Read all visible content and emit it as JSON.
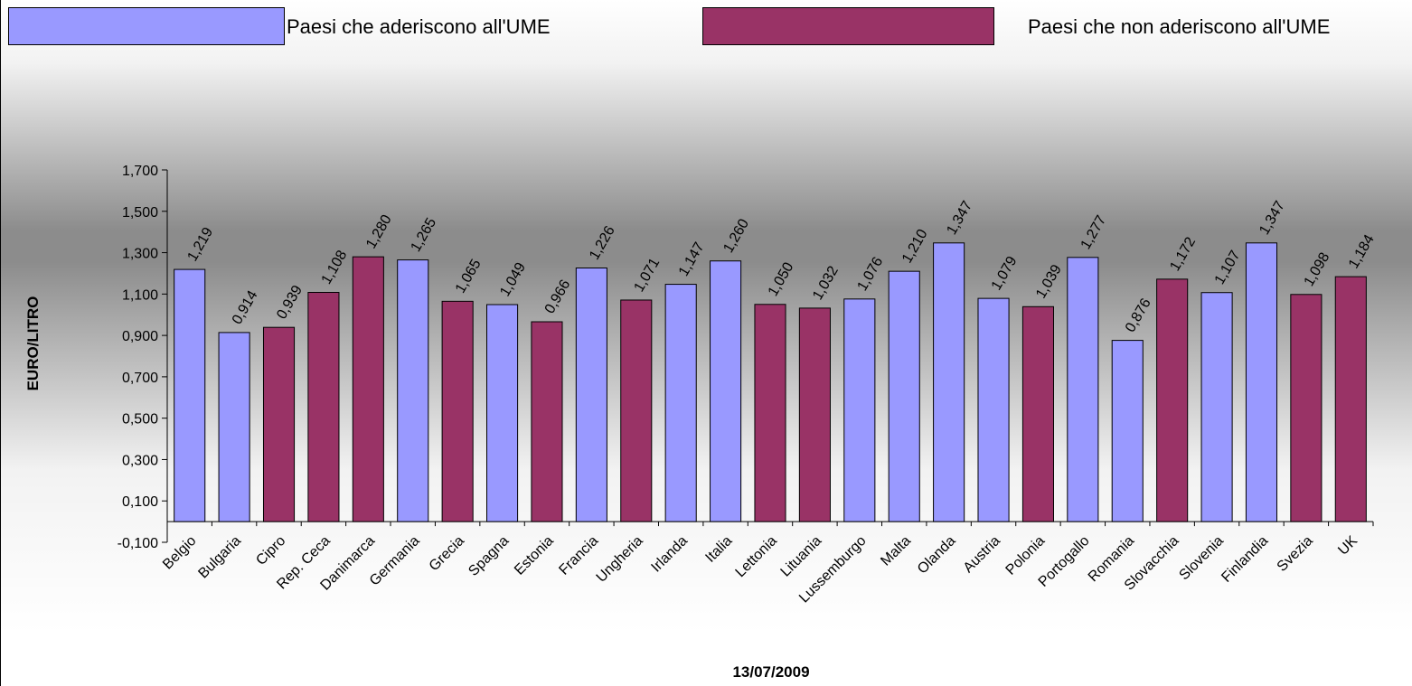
{
  "legend": [
    {
      "label": "Paesi che aderiscono all'UME",
      "color": "#9999ff"
    },
    {
      "label": "Paesi che non aderiscono all'UME",
      "color": "#993366"
    }
  ],
  "chart_data": {
    "type": "bar",
    "title": "",
    "xlabel": "13/07/2009",
    "ylabel": "EURO/LITRO",
    "ylim": [
      -0.1,
      1.7
    ],
    "yticks": [
      "-0,100",
      "0,100",
      "0,300",
      "0,500",
      "0,700",
      "0,900",
      "1,100",
      "1,300",
      "1,500",
      "1,700"
    ],
    "grid": false,
    "legend_position": "top",
    "categories": [
      "Belgio",
      "Bulgaria",
      "Cipro",
      "Rep. Ceca",
      "Danimarca",
      "Germania",
      "Grecia",
      "Spagna",
      "Estonia",
      "Francia",
      "Ungheria",
      "Irlanda",
      "Italia",
      "Lettonia",
      "Lituania",
      "Lussemburgo",
      "Malta",
      "Olanda",
      "Austria",
      "Polonia",
      "Portogallo",
      "Romania",
      "Slovacchia",
      "Slovenia",
      "Finlandia",
      "Svezia",
      "UK"
    ],
    "values": [
      1.219,
      0.914,
      0.939,
      1.108,
      1.28,
      1.265,
      1.065,
      1.049,
      0.966,
      1.226,
      1.071,
      1.147,
      1.26,
      1.05,
      1.032,
      1.076,
      1.21,
      1.347,
      1.079,
      1.039,
      1.277,
      0.876,
      1.172,
      1.107,
      1.347,
      1.098,
      1.184
    ],
    "labels": [
      "1,219",
      "0,914",
      "0,939",
      "1,108",
      "1,280",
      "1,265",
      "1,065",
      "1,049",
      "0,966",
      "1,226",
      "1,071",
      "1,147",
      "1,260",
      "1,050",
      "1,032",
      "1,076",
      "1,210",
      "1,347",
      "1,079",
      "1,039",
      "1,277",
      "0,876",
      "1,172",
      "1,107",
      "1,347",
      "1,098",
      "1,184"
    ],
    "ume_member": [
      true,
      true,
      false,
      false,
      false,
      true,
      false,
      true,
      false,
      true,
      false,
      true,
      true,
      false,
      false,
      true,
      true,
      true,
      true,
      false,
      true,
      true,
      false,
      true,
      true,
      false,
      false
    ]
  }
}
